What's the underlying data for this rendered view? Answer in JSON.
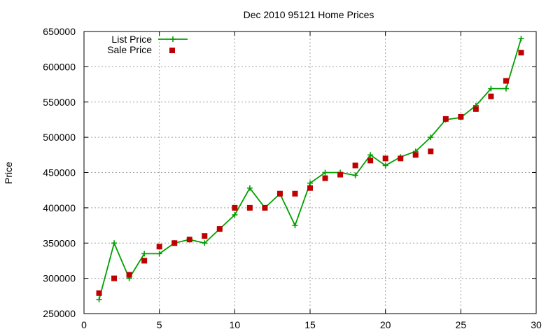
{
  "chart_data": {
    "type": "line",
    "title": "Dec 2010 95121 Home Prices",
    "xlabel": "",
    "ylabel": "Price",
    "xlim": [
      0,
      30
    ],
    "ylim": [
      250000,
      650000
    ],
    "xticks": [
      0,
      5,
      10,
      15,
      20,
      25,
      30
    ],
    "yticks": [
      250000,
      300000,
      350000,
      400000,
      450000,
      500000,
      550000,
      600000,
      650000
    ],
    "grid": true,
    "legend_position": "top-left",
    "series": [
      {
        "name": "List Price",
        "style": "line-plus",
        "color": "#00a000",
        "x": [
          1,
          2,
          3,
          4,
          5,
          6,
          7,
          8,
          9,
          10,
          11,
          12,
          13,
          14,
          15,
          16,
          17,
          18,
          19,
          20,
          21,
          22,
          23,
          24,
          25,
          26,
          27,
          28,
          29
        ],
        "y": [
          270000,
          350000,
          300000,
          335000,
          335000,
          350000,
          355000,
          350000,
          370000,
          390000,
          428000,
          400000,
          420000,
          375000,
          435000,
          450000,
          450000,
          446000,
          475000,
          460000,
          472000,
          480000,
          500000,
          525000,
          528000,
          545000,
          569000,
          569000,
          640000
        ]
      },
      {
        "name": "Sale Price",
        "style": "square",
        "color": "#c00000",
        "x": [
          1,
          2,
          3,
          4,
          5,
          6,
          7,
          8,
          9,
          10,
          11,
          12,
          13,
          14,
          15,
          16,
          17,
          18,
          19,
          20,
          21,
          22,
          23,
          24,
          25,
          26,
          27,
          28,
          29
        ],
        "y": [
          279000,
          300000,
          305000,
          325000,
          345000,
          350000,
          355000,
          360000,
          370000,
          400000,
          400000,
          400000,
          420000,
          420000,
          428000,
          442000,
          447000,
          460000,
          467000,
          470000,
          470000,
          475000,
          480000,
          526000,
          529000,
          540000,
          558000,
          580000,
          620000
        ]
      }
    ]
  }
}
